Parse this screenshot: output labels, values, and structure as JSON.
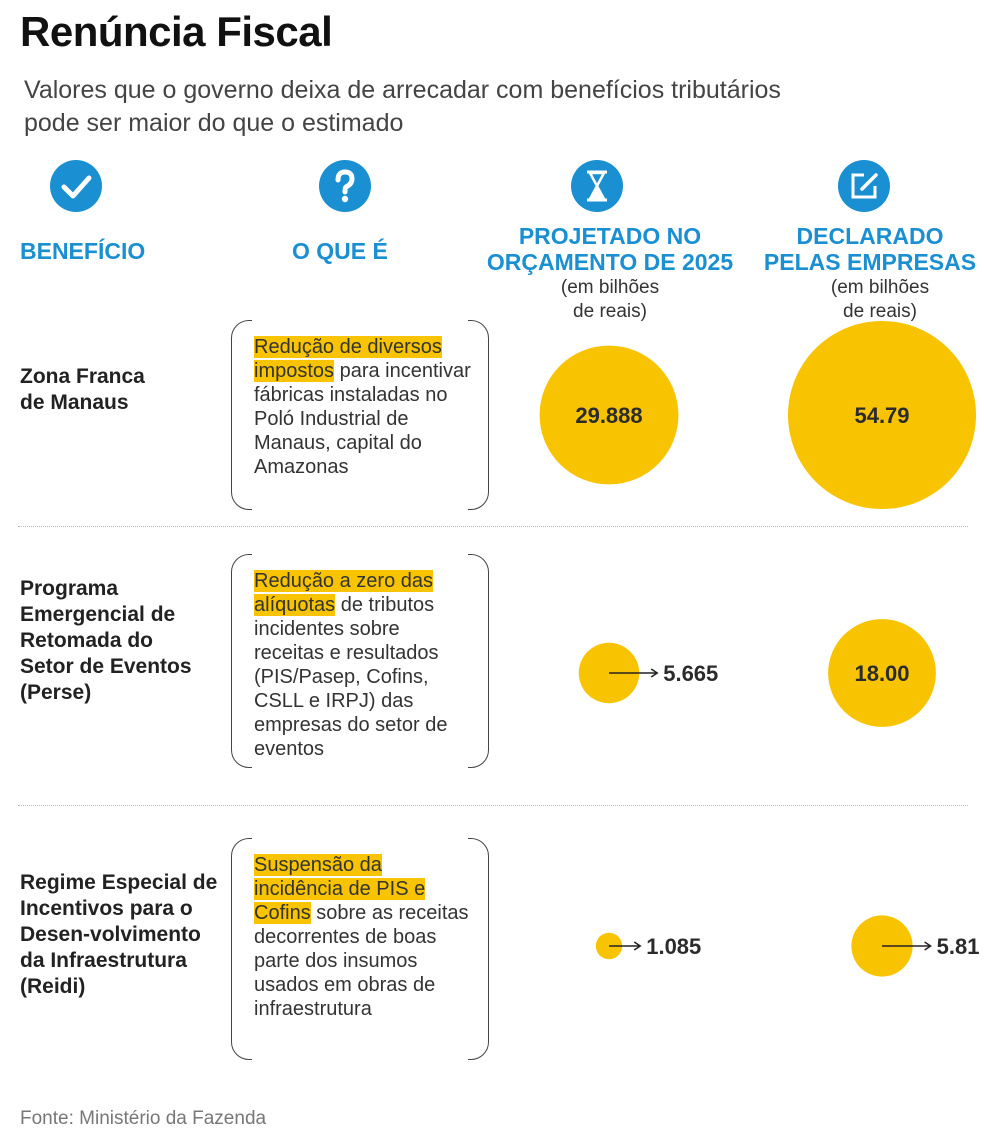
{
  "title": "Renúncia Fiscal",
  "subtitle": "Valores que o governo deixa de arrecadar com benefícios tributários pode ser maior do que o estimado",
  "headers": {
    "beneficio": "BENEFÍCIO",
    "oque": "O QUE É",
    "projetado_1": "PROJETADO NO",
    "projetado_2": "ORÇAMENTO DE 2025",
    "declarado_1": "DECLARADO",
    "declarado_2": "PELAS EMPRESAS",
    "unit_1": "(em bilhões",
    "unit_2": "de reais)"
  },
  "icons": {
    "beneficio": "check-icon",
    "oque": "question-icon",
    "projetado": "hourglass-icon",
    "declarado": "edit-icon"
  },
  "colors": {
    "accent": "#1a8fd1",
    "bubble": "#f8c300",
    "highlight": "#f8c300"
  },
  "rows": [
    {
      "name": "Zona Franca de Manaus",
      "desc_highlight": "Redução de diversos impostos",
      "desc_rest": " para incentivar fábricas instaladas no Poló Industrial de Manaus, capital do Amazonas"
    },
    {
      "name": "Programa Emergencial de Retomada do Setor de Eventos (Perse)",
      "desc_highlight": "Redução a zero das alíquotas",
      "desc_rest": " de tributos incidentes sobre receitas e resultados (PIS/Pasep, Cofins, CSLL e IRPJ) das empresas do setor de eventos"
    },
    {
      "name": "Regime Especial de Incentivos para o Desen-volvimento da Infraestrutura (Reidi)",
      "desc_highlight": "Suspensão da incidência de PIS e Cofins",
      "desc_rest": " sobre as receitas decorrentes de boas parte dos insumos usados em obras de infraestrutura"
    }
  ],
  "chart_data": {
    "type": "bubble",
    "categories": [
      "Zona Franca de Manaus",
      "Programa Emergencial de Retomada do Setor de Eventos (Perse)",
      "Regime Especial de Incentivos para o Desen-volvimento da Infraestrutura (Reidi)"
    ],
    "series": [
      {
        "name": "PROJETADO NO ORÇAMENTO DE 2025",
        "values": [
          29.888,
          5.665,
          1.085
        ],
        "labels": [
          "29.888",
          "5.665",
          "1.085"
        ]
      },
      {
        "name": "DECLARADO PELAS EMPRESAS",
        "values": [
          54.79,
          18.0,
          5.81
        ],
        "labels": [
          "54.79",
          "18.00",
          "5.81"
        ]
      }
    ],
    "unit": "(em bilhões de reais)"
  },
  "source": "Fonte: Ministério da Fazenda"
}
